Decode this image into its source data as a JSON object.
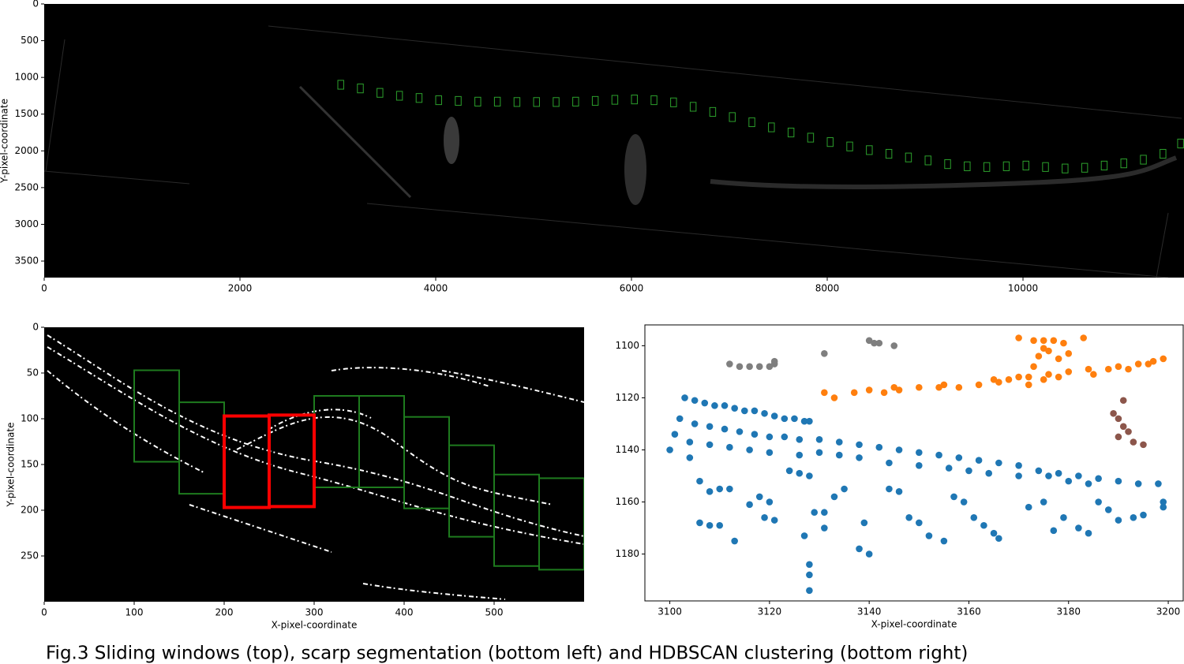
{
  "caption": "Fig.3 Sliding windows (top), scarp segmentation (bottom left) and HDBSCAN clustering (bottom right)",
  "chart_data": [
    {
      "type": "image",
      "ylabel": "Y-pixel-coordinate",
      "xlim": [
        0,
        11645
      ],
      "ylim": [
        3725,
        0
      ],
      "xticks": [
        0,
        2000,
        4000,
        6000,
        8000,
        10000
      ],
      "yticks": [
        0,
        500,
        1000,
        1500,
        2000,
        2500,
        3000,
        3500
      ],
      "window_size": [
        60,
        120
      ],
      "series": [
        {
          "color": "#2ca02c",
          "line_width": 1,
          "x": [
            3000,
            3200,
            3400,
            3600,
            3800,
            4000,
            4200,
            4400,
            4600,
            4800,
            5000,
            5200,
            5400,
            5600,
            5800,
            6000,
            6200,
            6400,
            6600,
            6800,
            7000,
            7200,
            7400,
            7600,
            7800,
            8000,
            8200,
            8400,
            8600,
            8800,
            9000,
            9200,
            9400,
            9600,
            9800,
            10000,
            10200,
            10400,
            10600,
            10800,
            11000,
            11200,
            11400,
            11580
          ],
          "y": [
            1040,
            1090,
            1150,
            1190,
            1220,
            1250,
            1260,
            1270,
            1270,
            1275,
            1275,
            1275,
            1270,
            1260,
            1245,
            1240,
            1250,
            1280,
            1340,
            1410,
            1480,
            1550,
            1620,
            1690,
            1760,
            1820,
            1880,
            1930,
            1980,
            2030,
            2070,
            2120,
            2150,
            2160,
            2150,
            2140,
            2160,
            2180,
            2170,
            2140,
            2110,
            2060,
            1980,
            1840
          ]
        }
      ]
    },
    {
      "type": "image",
      "xlabel": "X-pixel-coordinate",
      "ylabel": "Y-pixel-coordinate",
      "xlim": [
        0,
        600
      ],
      "ylim": [
        300,
        0
      ],
      "xticks": [
        0,
        100,
        200,
        300,
        400,
        500
      ],
      "yticks": [
        0,
        50,
        100,
        150,
        200,
        250
      ],
      "window_size": [
        50,
        100
      ],
      "series": [
        {
          "color": "#1e7b1e",
          "line_width": 2,
          "x": [
            100,
            150,
            300,
            350,
            400,
            450,
            500,
            550
          ],
          "y": [
            47,
            82,
            75,
            75,
            98,
            129,
            161,
            165
          ]
        },
        {
          "color": "#ff0000",
          "line_width": 4,
          "x": [
            200,
            250
          ],
          "y": [
            97,
            96
          ]
        }
      ]
    },
    {
      "type": "scatter",
      "xlabel": "X-pixel-coordinate",
      "xlim": [
        3095,
        3203
      ],
      "ylim": [
        1198,
        1092
      ],
      "xticks": [
        3100,
        3120,
        3140,
        3160,
        3180,
        3200
      ],
      "yticks": [
        1100,
        1120,
        1140,
        1160,
        1180
      ],
      "series": [
        {
          "color": "#1f77b4",
          "x": [
            3103,
            3105,
            3107,
            3109,
            3111,
            3113,
            3115,
            3117,
            3119,
            3121,
            3123,
            3125,
            3127,
            3128,
            3102,
            3105,
            3108,
            3111,
            3114,
            3117,
            3120,
            3123,
            3126,
            3130,
            3134,
            3138,
            3142,
            3146,
            3150,
            3154,
            3158,
            3162,
            3166,
            3170,
            3174,
            3178,
            3182,
            3186,
            3190,
            3194,
            3198,
            3101,
            3104,
            3108,
            3112,
            3116,
            3120,
            3126,
            3130,
            3134,
            3138,
            3144,
            3150,
            3156,
            3160,
            3164,
            3170,
            3176,
            3180,
            3184,
            3100,
            3104,
            3106,
            3108,
            3110,
            3112,
            3106,
            3108,
            3110,
            3113,
            3116,
            3118,
            3120,
            3119,
            3121,
            3124,
            3126,
            3128,
            3127,
            3129,
            3128,
            3128,
            3128,
            3131,
            3131,
            3133,
            3135,
            3138,
            3140,
            3139,
            3144,
            3146,
            3148,
            3150,
            3152,
            3155,
            3157,
            3159,
            3161,
            3163,
            3165,
            3166,
            3172,
            3175,
            3177,
            3179,
            3182,
            3184,
            3186,
            3188,
            3190,
            3193,
            3195,
            3199,
            3199
          ],
          "y": [
            1120,
            1121,
            1122,
            1123,
            1123,
            1124,
            1125,
            1125,
            1126,
            1127,
            1128,
            1128,
            1129,
            1129,
            1128,
            1130,
            1131,
            1132,
            1133,
            1134,
            1135,
            1135,
            1136,
            1136,
            1137,
            1138,
            1139,
            1140,
            1141,
            1142,
            1143,
            1144,
            1145,
            1146,
            1148,
            1149,
            1150,
            1151,
            1152,
            1153,
            1153,
            1134,
            1137,
            1138,
            1139,
            1140,
            1141,
            1142,
            1141,
            1142,
            1143,
            1145,
            1146,
            1147,
            1148,
            1149,
            1150,
            1150,
            1152,
            1153,
            1140,
            1143,
            1152,
            1156,
            1155,
            1155,
            1168,
            1169,
            1169,
            1175,
            1161,
            1158,
            1160,
            1166,
            1167,
            1148,
            1149,
            1150,
            1173,
            1164,
            1184,
            1188,
            1194,
            1164,
            1170,
            1158,
            1155,
            1178,
            1180,
            1168,
            1155,
            1156,
            1166,
            1168,
            1173,
            1175,
            1158,
            1160,
            1166,
            1169,
            1172,
            1174,
            1162,
            1160,
            1171,
            1166,
            1170,
            1172,
            1160,
            1163,
            1167,
            1166,
            1165,
            1160,
            1162
          ]
        },
        {
          "color": "#ff7f0e",
          "x": [
            3131,
            3133,
            3137,
            3140,
            3143,
            3146,
            3150,
            3154,
            3158,
            3162,
            3166,
            3168,
            3170,
            3172,
            3176,
            3180,
            3184,
            3188,
            3190,
            3194,
            3196,
            3199,
            3145,
            3155,
            3165,
            3175,
            3185,
            3192,
            3197,
            3170,
            3173,
            3175,
            3177,
            3179,
            3183,
            3175,
            3174,
            3176,
            3178,
            3180,
            3173,
            3178,
            3172
          ],
          "y": [
            1118,
            1120,
            1118,
            1117,
            1118,
            1117,
            1116,
            1116,
            1116,
            1115,
            1114,
            1113,
            1112,
            1112,
            1111,
            1110,
            1109,
            1109,
            1108,
            1107,
            1107,
            1105,
            1116,
            1115,
            1113,
            1113,
            1111,
            1109,
            1106,
            1097,
            1098,
            1098,
            1098,
            1099,
            1097,
            1101,
            1104,
            1102,
            1105,
            1103,
            1108,
            1112,
            1115
          ]
        },
        {
          "color": "#7f7f7f",
          "x": [
            3112,
            3114,
            3116,
            3118,
            3120,
            3121,
            3121,
            3131,
            3140,
            3141,
            3142,
            3145
          ],
          "y": [
            1107,
            1108,
            1108,
            1108,
            1108,
            1107,
            1106,
            1103,
            1098,
            1099,
            1099,
            1100
          ]
        },
        {
          "color": "#8c564b",
          "x": [
            3189,
            3190,
            3191,
            3192,
            3190,
            3193,
            3195,
            3191
          ],
          "y": [
            1126,
            1128,
            1131,
            1133,
            1135,
            1137,
            1138,
            1121
          ]
        }
      ]
    }
  ]
}
